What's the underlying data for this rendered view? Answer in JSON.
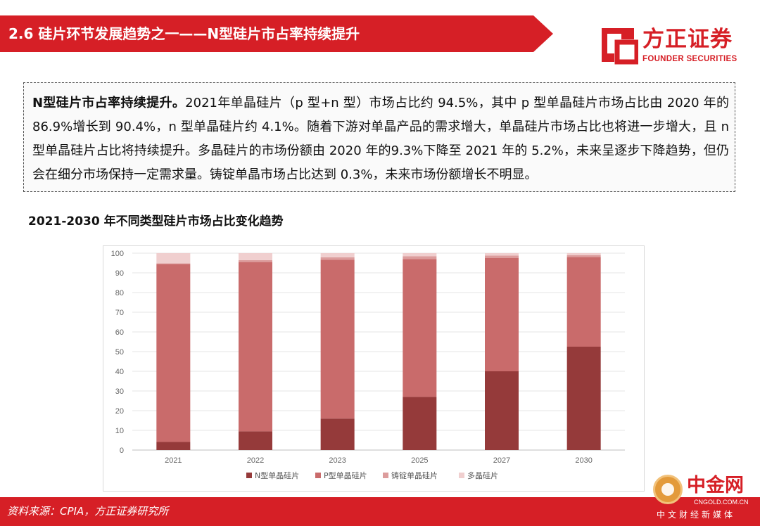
{
  "header": {
    "title": "2.6 硅片环节发展趋势之一——N型硅片市占率持续提升"
  },
  "logo": {
    "name_cn": "方正证券",
    "name_en": "FOUNDER SECURITIES"
  },
  "summary": {
    "lead": "N型硅片市占率持续提升。",
    "text": "2021年单晶硅片（p 型+n 型）市场占比约 94.5%，其中 p 型单晶硅片市场占比由 2020 年的 86.9%增长到 90.4%，n 型单晶硅片约 4.1%。随着下游对单晶产品的需求增大，单晶硅片市场占比也将进一步增大，且 n 型单晶硅片占比将持续提升。多晶硅片的市场份额由 2020 年的9.3%下降至 2021 年的 5.2%，未来呈逐步下降趋势，但仍会在细分市场保持一定需求量。铸锭单晶市场占比达到 0.3%，未来市场份额增长不明显。"
  },
  "chart_title": "2021-2030 年不同类型硅片市场占比变化趋势",
  "chart_data": {
    "type": "bar",
    "stacked": true,
    "categories": [
      "2021",
      "2022",
      "2023",
      "2025",
      "2027",
      "2030"
    ],
    "series": [
      {
        "name": "N型单晶硅片",
        "color": "#953a3a",
        "values": [
          4.1,
          9.5,
          16.0,
          27.0,
          40.0,
          52.5
        ]
      },
      {
        "name": "P型单晶硅片",
        "color": "#c96b6b",
        "values": [
          90.4,
          86.0,
          80.7,
          70.0,
          57.5,
          45.5
        ]
      },
      {
        "name": "铸锭单晶硅片",
        "color": "#dc9c9c",
        "values": [
          0.3,
          1.0,
          1.2,
          1.4,
          1.3,
          1.0
        ]
      },
      {
        "name": "多晶硅片",
        "color": "#f0cfcf",
        "values": [
          5.2,
          3.5,
          2.1,
          1.6,
          1.2,
          1.0
        ]
      }
    ],
    "ylim": [
      0,
      100
    ],
    "yticks": [
      0,
      10,
      20,
      30,
      40,
      50,
      60,
      70,
      80,
      90,
      100
    ],
    "legend_position": "bottom",
    "grid": true
  },
  "footer": {
    "source": "资料来源：CPIA，方正证券研究所"
  },
  "watermark": {
    "cn": "中金网",
    "en": "CNGOLD.COM.CN",
    "sub": "中文财经新媒体"
  }
}
